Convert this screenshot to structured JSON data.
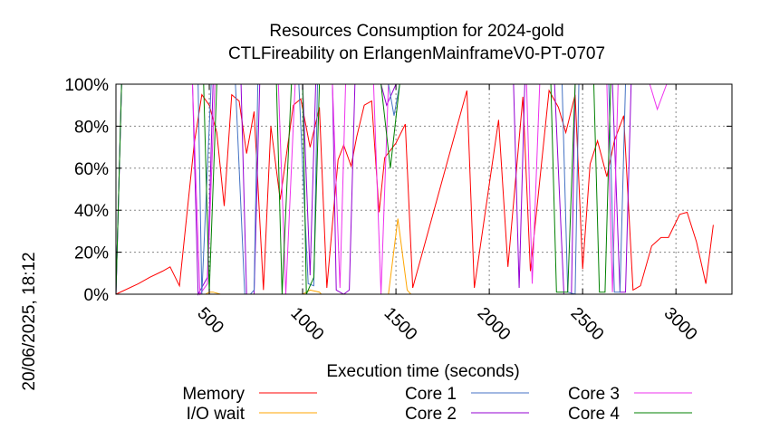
{
  "chart_data": {
    "type": "line",
    "title": "Resources Consumption for 2024-gold",
    "subtitle": "CTLFireability on ErlangenMainframeV0-PT-0707",
    "side_label": "20/06/2025, 18:12",
    "xlabel": "Execution time (seconds)",
    "ylabel": "",
    "xlim": [
      0,
      3300
    ],
    "ylim": [
      0,
      100
    ],
    "x_ticks": [
      500,
      1000,
      1500,
      2000,
      2500,
      3000
    ],
    "y_ticks": [
      0,
      20,
      40,
      60,
      80,
      100
    ],
    "y_tick_labels": [
      "0%",
      "20%",
      "40%",
      "60%",
      "80%",
      "100%"
    ],
    "grid": true,
    "legend_position": "bottom",
    "series": [
      {
        "name": "Memory",
        "color": "#ff0000",
        "points": [
          [
            0,
            0
          ],
          [
            120,
            5
          ],
          [
            180,
            8
          ],
          [
            250,
            11
          ],
          [
            290,
            13
          ],
          [
            340,
            4
          ],
          [
            420,
            72
          ],
          [
            460,
            95
          ],
          [
            500,
            90
          ],
          [
            540,
            77
          ],
          [
            580,
            42
          ],
          [
            620,
            95
          ],
          [
            660,
            92
          ],
          [
            700,
            67
          ],
          [
            740,
            87
          ],
          [
            790,
            2
          ],
          [
            830,
            80
          ],
          [
            880,
            45
          ],
          [
            950,
            90
          ],
          [
            990,
            93
          ],
          [
            1040,
            70
          ],
          [
            1090,
            89
          ],
          [
            1130,
            3
          ],
          [
            1190,
            64
          ],
          [
            1220,
            71
          ],
          [
            1260,
            61
          ],
          [
            1290,
            75
          ],
          [
            1330,
            90
          ],
          [
            1370,
            92
          ],
          [
            1410,
            39
          ],
          [
            1440,
            65
          ],
          [
            1500,
            72
          ],
          [
            1550,
            81
          ],
          [
            1590,
            3
          ],
          [
            1880,
            97
          ],
          [
            1920,
            3
          ],
          [
            2050,
            83
          ],
          [
            2100,
            13
          ],
          [
            2180,
            94
          ],
          [
            2220,
            11
          ],
          [
            2320,
            97
          ],
          [
            2370,
            89
          ],
          [
            2410,
            77
          ],
          [
            2460,
            95
          ],
          [
            2500,
            12
          ],
          [
            2540,
            62
          ],
          [
            2580,
            73
          ],
          [
            2630,
            56
          ],
          [
            2670,
            73
          ],
          [
            2720,
            85
          ],
          [
            2770,
            2
          ],
          [
            2810,
            4
          ],
          [
            2870,
            23
          ],
          [
            2920,
            27
          ],
          [
            2960,
            27
          ],
          [
            3020,
            38
          ],
          [
            3060,
            39
          ],
          [
            3110,
            25
          ],
          [
            3160,
            5
          ],
          [
            3200,
            33
          ]
        ]
      },
      {
        "name": "I/O wait",
        "color": "#ffa500",
        "points": [
          [
            0,
            0
          ],
          [
            430,
            0
          ],
          [
            480,
            0
          ],
          [
            500,
            1
          ],
          [
            520,
            1
          ],
          [
            560,
            0
          ],
          [
            1000,
            0
          ],
          [
            1040,
            2
          ],
          [
            1090,
            1
          ],
          [
            1100,
            0
          ],
          [
            1460,
            0
          ],
          [
            1510,
            36
          ],
          [
            1560,
            2
          ],
          [
            1580,
            0
          ],
          [
            2500,
            0
          ]
        ]
      },
      {
        "name": "Core 1",
        "color": "#4472c4",
        "points": [
          [
            0,
            0
          ],
          [
            30,
            100
          ],
          [
            440,
            100
          ],
          [
            460,
            0
          ],
          [
            510,
            100
          ],
          [
            640,
            100
          ],
          [
            690,
            0
          ],
          [
            720,
            0
          ],
          [
            740,
            2
          ],
          [
            760,
            100
          ],
          [
            980,
            100
          ],
          [
            1030,
            5
          ],
          [
            1060,
            4
          ],
          [
            1080,
            100
          ],
          [
            1420,
            100
          ],
          [
            1460,
            100
          ],
          [
            1490,
            85
          ],
          [
            1520,
            100
          ],
          [
            2390,
            100
          ],
          [
            2420,
            1
          ],
          [
            2460,
            0
          ],
          [
            2480,
            100
          ],
          [
            2640,
            100
          ],
          [
            2670,
            1
          ],
          [
            2700,
            1
          ],
          [
            2730,
            100
          ],
          [
            3200,
            100
          ]
        ]
      },
      {
        "name": "Core 2",
        "color": "#9400d3",
        "points": [
          [
            0,
            0
          ],
          [
            30,
            100
          ],
          [
            410,
            100
          ],
          [
            440,
            0
          ],
          [
            490,
            8
          ],
          [
            520,
            100
          ],
          [
            670,
            100
          ],
          [
            700,
            0
          ],
          [
            740,
            0
          ],
          [
            770,
            100
          ],
          [
            1000,
            100
          ],
          [
            1040,
            9
          ],
          [
            1070,
            100
          ],
          [
            1160,
            100
          ],
          [
            1180,
            2
          ],
          [
            1220,
            0
          ],
          [
            1250,
            2
          ],
          [
            1280,
            100
          ],
          [
            1420,
            100
          ],
          [
            1450,
            90
          ],
          [
            1500,
            100
          ],
          [
            2130,
            100
          ],
          [
            2160,
            3
          ],
          [
            2190,
            100
          ],
          [
            2350,
            100
          ],
          [
            2400,
            0
          ],
          [
            2440,
            0
          ],
          [
            2460,
            100
          ],
          [
            2660,
            100
          ],
          [
            2700,
            1
          ],
          [
            2730,
            1
          ],
          [
            2760,
            100
          ],
          [
            3200,
            100
          ]
        ]
      },
      {
        "name": "Core 3",
        "color": "#ee30ee",
        "points": [
          [
            0,
            0
          ],
          [
            30,
            100
          ],
          [
            410,
            100
          ],
          [
            450,
            0
          ],
          [
            490,
            5
          ],
          [
            530,
            100
          ],
          [
            870,
            100
          ],
          [
            910,
            0
          ],
          [
            960,
            100
          ],
          [
            1160,
            100
          ],
          [
            1200,
            3
          ],
          [
            1230,
            100
          ],
          [
            1380,
            100
          ],
          [
            1420,
            0
          ],
          [
            1460,
            100
          ],
          [
            2200,
            100
          ],
          [
            2230,
            5
          ],
          [
            2270,
            100
          ],
          [
            2630,
            100
          ],
          [
            2660,
            1
          ],
          [
            2690,
            100
          ],
          [
            2860,
            100
          ],
          [
            2900,
            88
          ],
          [
            2950,
            100
          ],
          [
            3200,
            100
          ]
        ]
      },
      {
        "name": "Core 4",
        "color": "#008000",
        "points": [
          [
            0,
            0
          ],
          [
            30,
            100
          ],
          [
            470,
            100
          ],
          [
            500,
            1
          ],
          [
            540,
            100
          ],
          [
            860,
            100
          ],
          [
            890,
            0
          ],
          [
            940,
            100
          ],
          [
            1000,
            100
          ],
          [
            1020,
            0
          ],
          [
            1060,
            8
          ],
          [
            1090,
            100
          ],
          [
            1420,
            100
          ],
          [
            1470,
            60
          ],
          [
            1520,
            100
          ],
          [
            2330,
            100
          ],
          [
            2360,
            1
          ],
          [
            2420,
            1
          ],
          [
            2460,
            100
          ],
          [
            2560,
            100
          ],
          [
            2590,
            1
          ],
          [
            2620,
            1
          ],
          [
            2650,
            100
          ],
          [
            3200,
            100
          ]
        ]
      }
    ]
  }
}
